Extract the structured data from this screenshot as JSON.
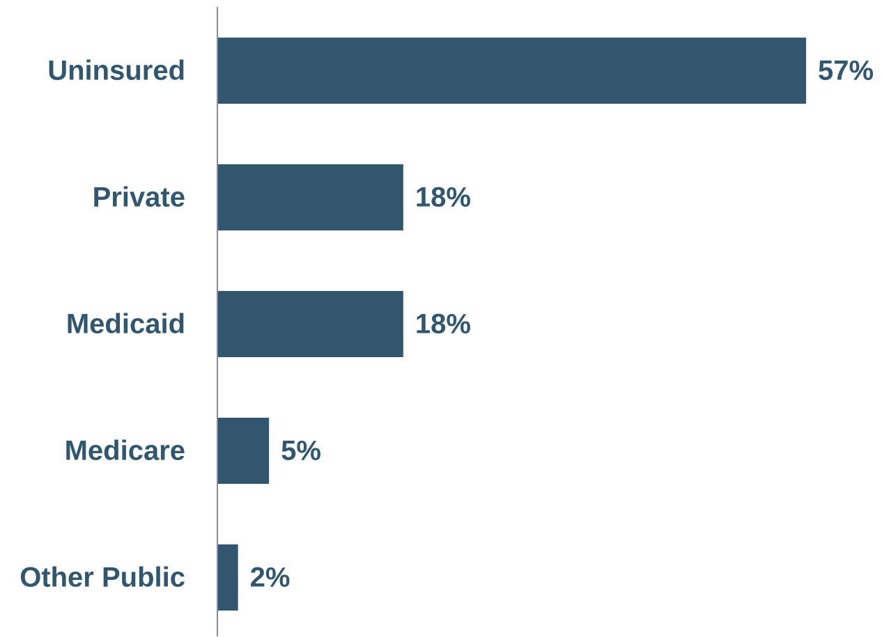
{
  "chart_data": {
    "type": "bar",
    "orientation": "horizontal",
    "categories": [
      "Uninsured",
      "Private",
      "Medicaid",
      "Medicare",
      "Other Public"
    ],
    "values": [
      57,
      18,
      18,
      5,
      2
    ],
    "value_labels": [
      "57%",
      "18%",
      "18%",
      "5%",
      "2%"
    ],
    "unit": "%",
    "xlim": [
      0,
      60
    ],
    "grid": false,
    "legend": "none"
  },
  "colors": {
    "bar": "#33566f",
    "text": "#33566f",
    "axis": "#8a86a6"
  }
}
